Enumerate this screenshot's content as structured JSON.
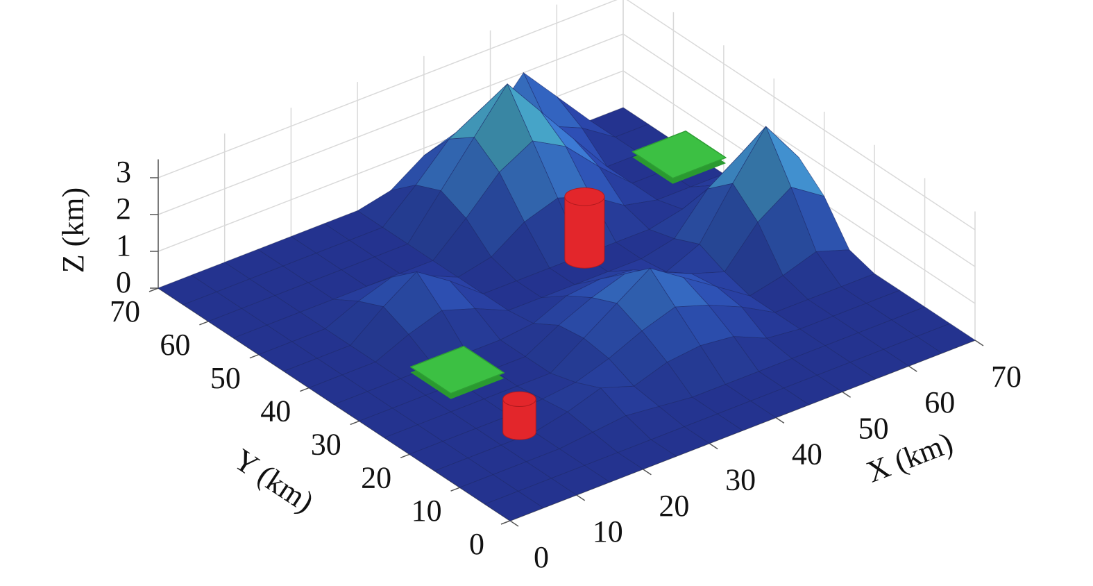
{
  "chart_data": {
    "type": "surface",
    "xlabel": "X (km)",
    "ylabel": "Y (km)",
    "zlabel": "Z (km)",
    "x": [
      0,
      5,
      10,
      15,
      20,
      25,
      30,
      35,
      40,
      45,
      50,
      55,
      60,
      65,
      70
    ],
    "y": [
      0,
      5,
      10,
      15,
      20,
      25,
      30,
      35,
      40,
      45,
      50,
      55,
      60,
      65,
      70
    ],
    "z": [
      [
        0,
        0,
        0,
        0,
        0,
        0,
        0,
        0,
        0,
        0,
        0,
        0,
        0,
        0,
        0
      ],
      [
        0,
        0,
        0,
        0,
        0,
        0,
        0,
        0,
        0,
        0,
        0,
        0,
        0,
        0,
        0
      ],
      [
        0,
        0,
        0,
        0,
        0.1,
        0.2,
        0.1,
        0,
        0,
        0,
        0,
        0,
        0,
        0,
        0
      ],
      [
        0,
        0,
        0,
        0,
        0.2,
        0.5,
        0.2,
        0.5,
        0.6,
        0.5,
        0.1,
        0,
        0,
        0,
        0
      ],
      [
        0,
        0,
        0,
        0,
        0.1,
        0.2,
        0.5,
        0.9,
        1.2,
        0.9,
        0.5,
        0,
        0,
        0,
        0
      ],
      [
        0,
        0,
        0,
        0,
        0,
        0,
        0.6,
        1.2,
        1.8,
        1.2,
        0.6,
        0,
        0.2,
        0.5,
        0.2
      ],
      [
        0,
        0,
        0,
        0,
        0,
        0,
        0.5,
        0.9,
        1.2,
        0.9,
        0.5,
        0.2,
        1.2,
        1.8,
        1.2
      ],
      [
        0,
        0,
        0,
        0,
        0,
        0,
        0.1,
        0.5,
        0.6,
        0.5,
        0.1,
        0.5,
        1.8,
        3.0,
        1.8
      ],
      [
        0,
        0,
        0,
        0.4,
        0.7,
        0.4,
        0,
        0,
        0,
        0,
        0,
        0.2,
        1.2,
        1.8,
        1.2
      ],
      [
        0,
        0,
        0,
        0.7,
        1.3,
        0.7,
        0,
        0,
        0,
        0,
        0,
        0,
        0.2,
        0.5,
        0.2
      ],
      [
        0,
        0,
        0,
        0.4,
        0.7,
        0.4,
        0,
        0.2,
        0.8,
        1.1,
        0.8,
        0.2,
        0,
        0,
        0
      ],
      [
        0,
        0,
        0,
        0,
        0,
        0,
        0,
        0.8,
        1.7,
        2.2,
        1.7,
        0.8,
        0,
        0,
        0
      ],
      [
        0,
        0,
        0,
        0,
        0,
        0,
        0,
        1.1,
        2.2,
        3.3,
        2.2,
        1.1,
        0,
        0,
        0
      ],
      [
        0,
        0,
        0,
        0,
        0,
        0,
        0,
        0.8,
        1.7,
        2.2,
        1.7,
        1.0,
        0.6,
        0,
        0
      ],
      [
        0,
        0,
        0,
        0,
        0,
        0,
        0,
        0.2,
        0.8,
        1.1,
        1.0,
        2.0,
        1.0,
        0,
        0
      ]
    ],
    "xlim": [
      0,
      70
    ],
    "ylim": [
      0,
      70
    ],
    "zlim": [
      0,
      3.5
    ],
    "xticks": [
      0,
      10,
      20,
      30,
      40,
      50,
      60,
      70
    ],
    "yticks": [
      0,
      10,
      20,
      30,
      40,
      50,
      60,
      70
    ],
    "zticks": [
      0,
      1,
      2,
      3
    ],
    "grid": true,
    "colors": [
      "#24338f",
      "#2c4fae",
      "#3a7bc8",
      "#45a3bd",
      "#4fc48a"
    ],
    "edge_color": "#1b2768",
    "objects": [
      {
        "shape": "square",
        "color": "#3cc043",
        "x": 58,
        "y": 43,
        "z": 2.0,
        "size": 4
      },
      {
        "shape": "cylinder",
        "color": "#e3262b",
        "x": 43,
        "y": 42,
        "z": 0.3,
        "top": 2.0,
        "size": 3
      },
      {
        "shape": "square",
        "color": "#3cc043",
        "x": 14,
        "y": 29,
        "z": 0.5,
        "size": 4
      },
      {
        "shape": "cylinder",
        "color": "#e3262b",
        "x": 12,
        "y": 14,
        "z": 0.3,
        "top": 1.2,
        "size": 2.5
      }
    ]
  }
}
